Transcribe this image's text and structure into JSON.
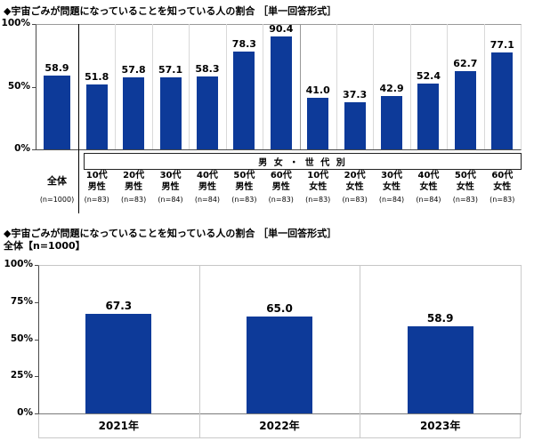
{
  "colors": {
    "bar": "#0d3a99",
    "axis_dark": "#4a4a4a",
    "grid_light": "#d9d9d9",
    "grid_mid": "#999999",
    "separator_black": "#000000",
    "strip_border": "#c9c9c9"
  },
  "chart_data": [
    {
      "type": "bar",
      "title": "◆宇宙ごみが問題になっていることを知っている人の割合 ［単一回答形式］",
      "group_band_label": "男 女 ・ 世 代 別",
      "ylim": [
        0,
        100
      ],
      "yticks": [
        {
          "label": "100%",
          "value": 100
        },
        {
          "label": "50%",
          "value": 50
        },
        {
          "label": "0%",
          "value": 0
        }
      ],
      "categories": [
        [
          "全体"
        ],
        [
          "10代",
          "男性"
        ],
        [
          "20代",
          "男性"
        ],
        [
          "30代",
          "男性"
        ],
        [
          "40代",
          "男性"
        ],
        [
          "50代",
          "男性"
        ],
        [
          "60代",
          "男性"
        ],
        [
          "10代",
          "女性"
        ],
        [
          "20代",
          "女性"
        ],
        [
          "30代",
          "女性"
        ],
        [
          "40代",
          "女性"
        ],
        [
          "50代",
          "女性"
        ],
        [
          "60代",
          "女性"
        ]
      ],
      "sample_sizes": [
        "(n=1000)",
        "(n=83)",
        "(n=83)",
        "(n=84)",
        "(n=84)",
        "(n=83)",
        "(n=83)",
        "(n=83)",
        "(n=83)",
        "(n=84)",
        "(n=84)",
        "(n=83)",
        "(n=83)"
      ],
      "values": [
        58.9,
        51.8,
        57.8,
        57.1,
        58.3,
        78.3,
        90.4,
        41.0,
        37.3,
        42.9,
        52.4,
        62.7,
        77.1
      ]
    },
    {
      "type": "bar",
      "title": "◆宇宙ごみが問題になっていることを知っている人の割合 ［単一回答形式］",
      "subtitle": "全体【n=1000】",
      "ylim": [
        0,
        100
      ],
      "yticks": [
        {
          "label": "100%",
          "value": 100
        },
        {
          "label": "75%",
          "value": 75
        },
        {
          "label": "50%",
          "value": 50
        },
        {
          "label": "25%",
          "value": 25
        },
        {
          "label": "0%",
          "value": 0
        }
      ],
      "categories": [
        [
          "2021年"
        ],
        [
          "2022年"
        ],
        [
          "2023年"
        ]
      ],
      "values": [
        67.3,
        65.0,
        58.9
      ]
    }
  ]
}
